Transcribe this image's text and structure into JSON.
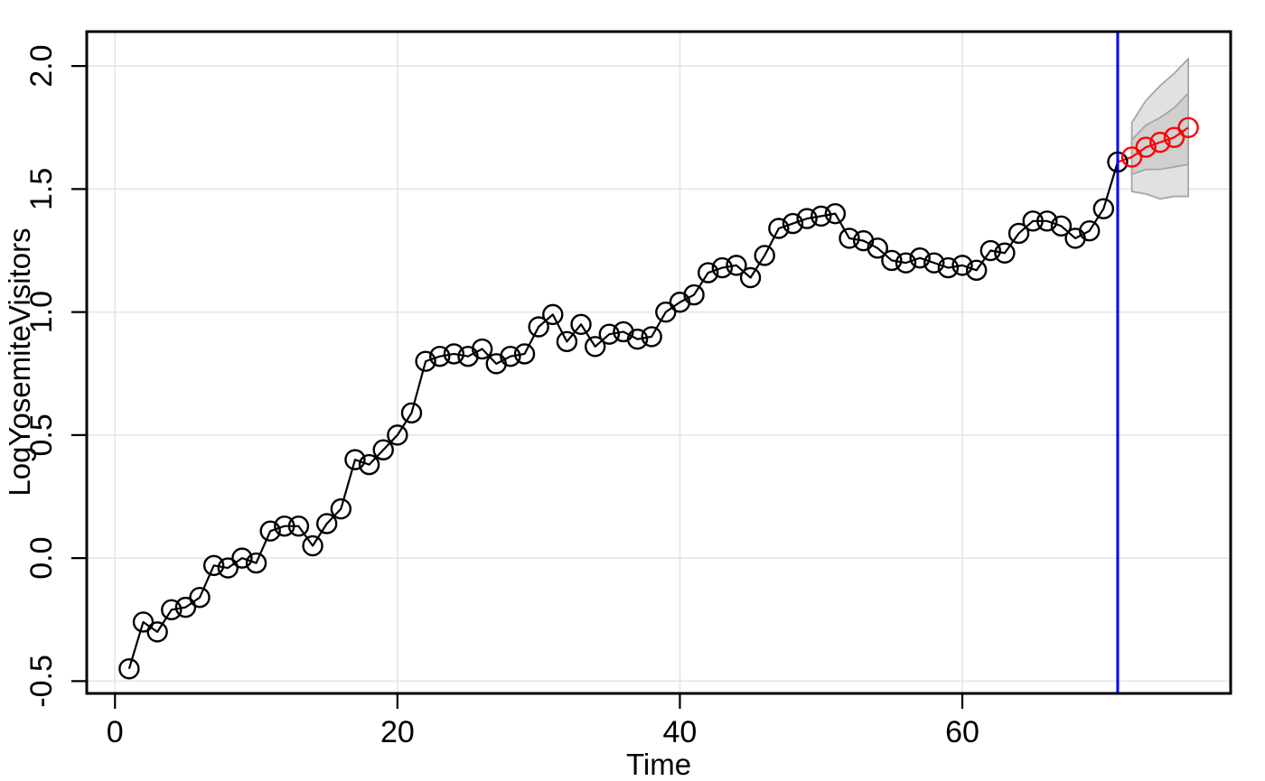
{
  "chart_data": {
    "type": "line",
    "title": "",
    "xlabel": "Time",
    "ylabel": "LogYosemiteVisitors",
    "xlim": [
      -2,
      79
    ],
    "ylim": [
      -0.55,
      2.14
    ],
    "grid": true,
    "x_ticks": [
      0,
      20,
      40,
      60
    ],
    "x_tick_labels": [
      "0",
      "20",
      "40",
      "60"
    ],
    "y_ticks": [
      -0.5,
      0.0,
      0.5,
      1.0,
      1.5,
      2.0
    ],
    "y_tick_labels": [
      "-0.5",
      "0.0",
      "0.5",
      "1.0",
      "1.5",
      "2.0"
    ],
    "observed": {
      "marker": "open-circle",
      "x": [
        1,
        2,
        3,
        4,
        5,
        6,
        7,
        8,
        9,
        10,
        11,
        12,
        13,
        14,
        15,
        16,
        17,
        18,
        19,
        20,
        21,
        22,
        23,
        24,
        25,
        26,
        27,
        28,
        29,
        30,
        31,
        32,
        33,
        34,
        35,
        36,
        37,
        38,
        39,
        40,
        41,
        42,
        43,
        44,
        45,
        46,
        47,
        48,
        49,
        50,
        51,
        52,
        53,
        54,
        55,
        56,
        57,
        58,
        59,
        60,
        61,
        62,
        63,
        64,
        65,
        66,
        67,
        68,
        69,
        70,
        71
      ],
      "y": [
        -0.45,
        -0.26,
        -0.3,
        -0.21,
        -0.2,
        -0.16,
        -0.03,
        -0.04,
        0.0,
        -0.02,
        0.11,
        0.13,
        0.13,
        0.05,
        0.14,
        0.2,
        0.4,
        0.38,
        0.44,
        0.5,
        0.59,
        0.8,
        0.82,
        0.83,
        0.82,
        0.85,
        0.79,
        0.82,
        0.83,
        0.94,
        0.99,
        0.88,
        0.95,
        0.86,
        0.91,
        0.92,
        0.89,
        0.9,
        1.0,
        1.04,
        1.07,
        1.16,
        1.18,
        1.19,
        1.14,
        1.23,
        1.34,
        1.36,
        1.38,
        1.39,
        1.4,
        1.3,
        1.29,
        1.26,
        1.21,
        1.2,
        1.22,
        1.2,
        1.18,
        1.19,
        1.17,
        1.25,
        1.24,
        1.32,
        1.37,
        1.37,
        1.35,
        1.3,
        1.33,
        1.42,
        1.61
      ]
    },
    "forecast": {
      "marker": "open-circle",
      "connect_from_last_observed": true,
      "x": [
        72,
        73,
        74,
        75,
        76
      ],
      "mean": [
        1.63,
        1.67,
        1.69,
        1.71,
        1.75
      ],
      "lo80": [
        1.56,
        1.58,
        1.58,
        1.59,
        1.6
      ],
      "hi80": [
        1.7,
        1.76,
        1.79,
        1.83,
        1.89
      ],
      "lo95": [
        1.49,
        1.48,
        1.46,
        1.47,
        1.47
      ],
      "hi95": [
        1.77,
        1.86,
        1.92,
        1.97,
        2.03
      ]
    },
    "vline_x": 71,
    "legend": null,
    "colors": {
      "observed": "#000000",
      "forecast": "#ff0000",
      "vline": "#0000ff",
      "grid": "#e7e7e7",
      "interval_95_fill": "#e1e1e1",
      "interval_80_fill": "#d0d0d0",
      "interval_border": "#a6a6a6",
      "box": "#000000"
    }
  }
}
